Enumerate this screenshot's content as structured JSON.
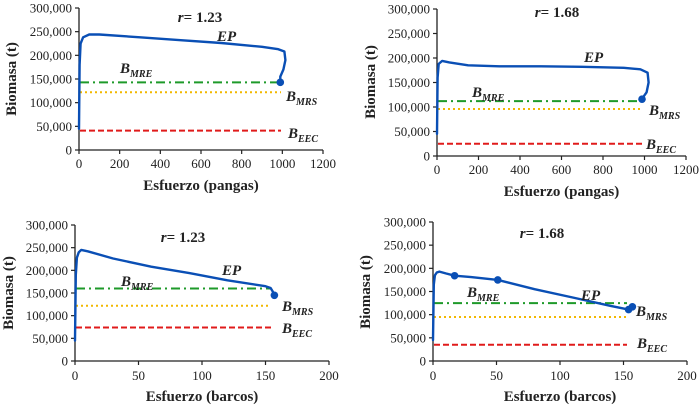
{
  "chart_data": [
    {
      "type": "line",
      "panel": "top-left",
      "title_var": "r",
      "title_value": "= 1.23",
      "xlabel": "Esfuerzo (pangas)",
      "ylabel": "Biomasa (t)",
      "xlim": [
        0,
        1200
      ],
      "ylim": [
        0,
        300000
      ],
      "xticks": [
        0,
        200,
        400,
        600,
        800,
        1000,
        1200
      ],
      "yticks": [
        0,
        50000,
        100000,
        150000,
        200000,
        250000,
        300000
      ],
      "ytick_labels": [
        "0",
        "50,000",
        "100,000",
        "150,000",
        "200,000",
        "250,000",
        "300,000"
      ],
      "series": [
        {
          "name": "EP",
          "color": "#0a4fb5",
          "x": [
            0,
            3,
            8,
            20,
            50,
            100,
            300,
            500,
            700,
            900,
            980,
            1010,
            1015,
            1005,
            990,
            990
          ],
          "y": [
            45000,
            180000,
            225000,
            238000,
            244000,
            244000,
            238000,
            232000,
            226000,
            218000,
            213000,
            208000,
            190000,
            170000,
            155000,
            143000
          ],
          "markers": [
            {
              "x": 990,
              "y": 143000
            }
          ]
        }
      ],
      "reference_lines": [
        {
          "name": "B_MRE",
          "main": "B",
          "sub": "MRE",
          "value": 143000,
          "color": "#1e9a2a",
          "style": "dash-dot"
        },
        {
          "name": "B_MRS",
          "main": "B",
          "sub": "MRS",
          "value": 122000,
          "color": "#f2b800",
          "style": "dotted"
        },
        {
          "name": "B_EEC",
          "main": "B",
          "sub": "EEC",
          "value": 41000,
          "color": "#e01b1b",
          "style": "dashed"
        }
      ],
      "annotations": [
        "EP",
        "B_MRE",
        "B_MRS",
        "B_EEC"
      ]
    },
    {
      "type": "line",
      "panel": "top-right",
      "title_var": "r",
      "title_value": "= 1.68",
      "xlabel": "Esfuerzo (pangas)",
      "ylabel": "Biomasa (t)",
      "xlim": [
        0,
        1200
      ],
      "ylim": [
        0,
        300000
      ],
      "xticks": [
        0,
        200,
        400,
        600,
        800,
        1000,
        1200
      ],
      "yticks": [
        0,
        50000,
        100000,
        150000,
        200000,
        250000,
        300000
      ],
      "ytick_labels": [
        "0",
        "50,000",
        "100,000",
        "150,000",
        "200,000",
        "250,000",
        "300,000"
      ],
      "series": [
        {
          "name": "EP",
          "color": "#0a4fb5",
          "x": [
            0,
            3,
            8,
            25,
            60,
            150,
            300,
            500,
            700,
            900,
            980,
            1015,
            1020,
            1010,
            990,
            985
          ],
          "y": [
            45000,
            160000,
            188000,
            194000,
            191000,
            185000,
            183000,
            183000,
            182000,
            180000,
            177000,
            170000,
            150000,
            130000,
            118000,
            116000
          ],
          "markers": [
            {
              "x": 988,
              "y": 116000
            }
          ]
        }
      ],
      "reference_lines": [
        {
          "name": "B_MRE",
          "main": "B",
          "sub": "MRE",
          "value": 112000,
          "color": "#1e9a2a",
          "style": "dash-dot"
        },
        {
          "name": "B_MRS",
          "main": "B",
          "sub": "MRS",
          "value": 96000,
          "color": "#f2b800",
          "style": "dotted"
        },
        {
          "name": "B_EEC",
          "main": "B",
          "sub": "EEC",
          "value": 25000,
          "color": "#e01b1b",
          "style": "dashed"
        }
      ],
      "annotations": [
        "EP",
        "B_MRE",
        "B_MRS",
        "B_EEC"
      ]
    },
    {
      "type": "line",
      "panel": "bottom-left",
      "title_var": "r",
      "title_value": "= 1.23",
      "xlabel": "Esfuerzo (barcos)",
      "ylabel": "Biomasa (t)",
      "xlim": [
        0,
        200
      ],
      "ylim": [
        0,
        300000
      ],
      "xticks": [
        0,
        50,
        100,
        150,
        200
      ],
      "yticks": [
        0,
        50000,
        100000,
        150000,
        200000,
        250000,
        300000
      ],
      "ytick_labels": [
        "0",
        "50,000",
        "100,000",
        "150,000",
        "200,000",
        "250,000",
        "300,000"
      ],
      "series": [
        {
          "name": "EP",
          "color": "#0a4fb5",
          "x": [
            0,
            0.6,
            1.5,
            3,
            5,
            10,
            30,
            60,
            90,
            120,
            150,
            154,
            156,
            157
          ],
          "y": [
            45000,
            190000,
            228000,
            240000,
            245000,
            242000,
            226000,
            208000,
            194000,
            178000,
            165000,
            161000,
            152000,
            145000
          ],
          "markers": [
            {
              "x": 157,
              "y": 145000
            }
          ]
        }
      ],
      "reference_lines": [
        {
          "name": "B_MRE",
          "main": "B",
          "sub": "MRE",
          "value": 160000,
          "color": "#1e9a2a",
          "style": "dash-dot"
        },
        {
          "name": "B_MRS",
          "main": "B",
          "sub": "MRS",
          "value": 122000,
          "color": "#f2b800",
          "style": "dotted"
        },
        {
          "name": "B_EEC",
          "main": "B",
          "sub": "EEC",
          "value": 74000,
          "color": "#e01b1b",
          "style": "dashed"
        }
      ],
      "annotations": [
        "EP",
        "B_MRE",
        "B_MRS",
        "B_EEC"
      ]
    },
    {
      "type": "line",
      "panel": "bottom-right",
      "title_var": "r",
      "title_value": "= 1.68",
      "xlabel": "Esfuerzo (barcos)",
      "ylabel": "Biomasa (t)",
      "xlim": [
        0,
        200
      ],
      "ylim": [
        0,
        300000
      ],
      "xticks": [
        0,
        50,
        100,
        150,
        200
      ],
      "yticks": [
        0,
        50000,
        100000,
        150000,
        200000,
        250000,
        300000
      ],
      "ytick_labels": [
        "0",
        "50,000",
        "100,000",
        "150,000",
        "200,000",
        "250,000",
        "300,000"
      ],
      "series": [
        {
          "name": "EP",
          "color": "#0a4fb5",
          "x": [
            0,
            0.6,
            1.5,
            3,
            5,
            10,
            17,
            30,
            51,
            80,
            110,
            140,
            154,
            157
          ],
          "y": [
            45000,
            165000,
            185000,
            191000,
            193000,
            189000,
            184000,
            181000,
            175000,
            155000,
            137000,
            119000,
            111000,
            117000
          ],
          "markers": [
            {
              "x": 17,
              "y": 184000
            },
            {
              "x": 51,
              "y": 175000
            },
            {
              "x": 154,
              "y": 111000
            },
            {
              "x": 157,
              "y": 117000
            }
          ]
        }
      ],
      "reference_lines": [
        {
          "name": "B_MRE",
          "main": "B",
          "sub": "MRE",
          "value": 125000,
          "color": "#1e9a2a",
          "style": "dash-dot"
        },
        {
          "name": "B_MRS",
          "main": "B",
          "sub": "MRS",
          "value": 95000,
          "color": "#f2b800",
          "style": "dotted"
        },
        {
          "name": "B_EEC",
          "main": "B",
          "sub": "EEC",
          "value": 35000,
          "color": "#e01b1b",
          "style": "dashed"
        }
      ],
      "annotations": [
        "EP",
        "B_MRE",
        "B_MRS",
        "B_EEC"
      ]
    }
  ]
}
